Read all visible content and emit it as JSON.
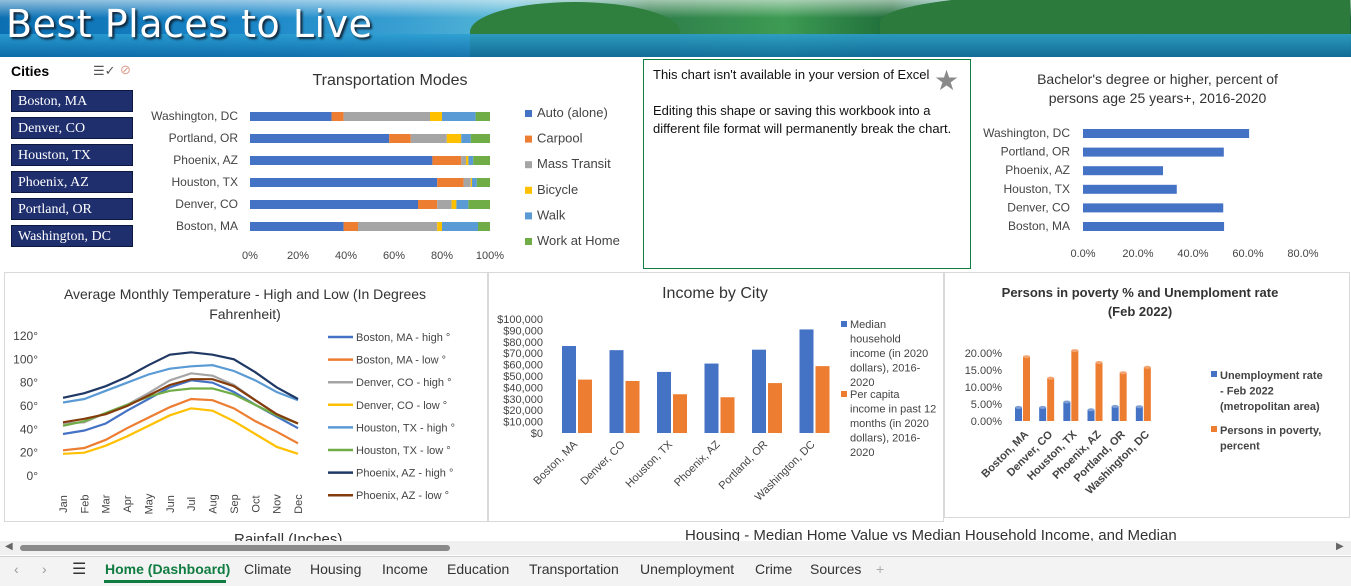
{
  "banner_title": "Best Places to Live",
  "slicer": {
    "title": "Cities",
    "items": [
      "Boston, MA",
      "Denver, CO",
      "Houston, TX",
      "Phoenix, AZ",
      "Portland, OR",
      "Washington, DC"
    ]
  },
  "unavailable_box": {
    "line1": "This chart isn't available in your version of Excel",
    "line2": "Editing this shape or saving this workbook into a different file format will permanently break the chart."
  },
  "chart_data": [
    {
      "type": "bar",
      "title": "Transportation Modes",
      "stacked": "100%",
      "categories": [
        "Washington, DC",
        "Portland, OR",
        "Phoenix, AZ",
        "Houston, TX",
        "Denver, CO",
        "Boston, MA"
      ],
      "x_ticks": [
        "0%",
        "20%",
        "40%",
        "60%",
        "80%",
        "100%"
      ],
      "series": [
        {
          "name": "Auto (alone)",
          "color": "#4472c4",
          "values": [
            34,
            58,
            76,
            78,
            70,
            39
          ]
        },
        {
          "name": "Carpool",
          "color": "#ed7d31",
          "values": [
            5,
            9,
            12,
            11,
            8,
            6
          ]
        },
        {
          "name": "Mass Transit",
          "color": "#a5a5a5",
          "values": [
            36,
            15,
            2,
            3,
            6,
            33
          ]
        },
        {
          "name": "Bicycle",
          "color": "#ffc000",
          "values": [
            5,
            6,
            1,
            0.5,
            2,
            2
          ]
        },
        {
          "name": "Walk",
          "color": "#5b9bd5",
          "values": [
            14,
            4,
            2,
            2,
            5,
            15
          ]
        },
        {
          "name": "Work at Home",
          "color": "#70ad47",
          "values": [
            6,
            8,
            7,
            5.5,
            9,
            5
          ]
        }
      ]
    },
    {
      "type": "bar",
      "title": "Bachelor's degree or higher, percent of persons age 25 years+, 2016-2020",
      "categories": [
        "Washington, DC",
        "Portland, OR",
        "Phoenix, AZ",
        "Houston, TX",
        "Denver, CO",
        "Boston, MA"
      ],
      "values": [
        60.4,
        51.2,
        29.1,
        34.1,
        51.0,
        51.3
      ],
      "x_ticks": [
        "0.0%",
        "20.0%",
        "40.0%",
        "60.0%",
        "80.0%"
      ],
      "xlim": [
        0,
        80
      ],
      "color": "#4472c4"
    },
    {
      "type": "line",
      "title": "Average Monthly Temperature - High and Low (In Degrees Fahrenheit)",
      "categories": [
        "Jan",
        "Feb",
        "Mar",
        "Apr",
        "May",
        "Jun",
        "Jul",
        "Aug",
        "Sep",
        "Oct",
        "Nov",
        "Dec"
      ],
      "y_ticks": [
        "0°",
        "20°",
        "40°",
        "60°",
        "80°",
        "100°",
        "120°"
      ],
      "ylim": [
        0,
        120
      ],
      "series": [
        {
          "name": "Boston, MA - high °",
          "color": "#4472c4",
          "values": [
            36,
            39,
            45,
            56,
            66,
            76,
            82,
            80,
            72,
            61,
            51,
            41
          ]
        },
        {
          "name": "Boston, MA - low °",
          "color": "#ed7d31",
          "values": [
            22,
            24,
            31,
            41,
            50,
            59,
            66,
            65,
            58,
            47,
            38,
            28
          ]
        },
        {
          "name": "Denver, CO - high °",
          "color": "#a5a5a5",
          "values": [
            45,
            46,
            54,
            61,
            71,
            82,
            88,
            86,
            78,
            65,
            53,
            45
          ]
        },
        {
          "name": "Denver, CO - low °",
          "color": "#ffc000",
          "values": [
            19,
            20,
            26,
            34,
            43,
            52,
            58,
            56,
            47,
            36,
            25,
            19
          ]
        },
        {
          "name": "Houston, TX - high °",
          "color": "#5b9bd5",
          "values": [
            63,
            66,
            73,
            80,
            87,
            92,
            94,
            95,
            90,
            82,
            72,
            65
          ]
        },
        {
          "name": "Houston, TX - low °",
          "color": "#70ad47",
          "values": [
            43,
            47,
            54,
            61,
            68,
            73,
            75,
            75,
            70,
            61,
            52,
            45
          ]
        },
        {
          "name": "Phoenix, AZ - high °",
          "color": "#1f3864",
          "values": [
            67,
            71,
            77,
            85,
            95,
            104,
            106,
            104,
            100,
            89,
            76,
            66
          ]
        },
        {
          "name": "Phoenix, AZ - low °",
          "color": "#843c0c",
          "values": [
            46,
            49,
            53,
            60,
            69,
            78,
            83,
            83,
            77,
            65,
            53,
            45
          ]
        }
      ]
    },
    {
      "type": "bar",
      "title": "Income by City",
      "categories": [
        "Boston, MA",
        "Denver, CO",
        "Houston, TX",
        "Phoenix, AZ",
        "Portland, OR",
        "Washington, DC"
      ],
      "y_ticks": [
        "$0",
        "$10,000",
        "$20,000",
        "$30,000",
        "$40,000",
        "$50,000",
        "$60,000",
        "$70,000",
        "$80,000",
        "$90,000",
        "$100,000"
      ],
      "ylim": [
        0,
        100000
      ],
      "series": [
        {
          "name": "Median household income (in 2020 dollars), 2016-2020",
          "color": "#4472c4",
          "values": [
            76298,
            72661,
            53600,
            60914,
            73097,
            90842
          ]
        },
        {
          "name": "Per capita income in past 12 months (in 2020 dollars), 2016-2020",
          "color": "#ed7d31",
          "values": [
            46845,
            45636,
            33999,
            31368,
            43793,
            58659
          ]
        }
      ]
    },
    {
      "type": "bar",
      "title": "Persons in poverty % and Unemploment rate (Feb 2022)",
      "categories": [
        "Boston, MA",
        "Denver, CO",
        "Houston, TX",
        "Phoenix, AZ",
        "Portland, OR",
        "Washington, DC"
      ],
      "y_ticks": [
        "0.00%",
        "5.00%",
        "10.00%",
        "15.00%",
        "20.00%"
      ],
      "ylim": [
        0,
        20
      ],
      "series": [
        {
          "name": "Unemployment rate - Feb 2022 (metropolitan area)",
          "color": "#4472c4",
          "values": [
            4.0,
            4.0,
            5.6,
            3.3,
            4.3,
            4.2
          ]
        },
        {
          "name": "Persons in poverty, percent",
          "color": "#ed7d31",
          "values": [
            18.9,
            12.6,
            20.7,
            17.2,
            14.2,
            15.8
          ]
        }
      ]
    }
  ],
  "partial_titles": {
    "rainfall": "Rainfall (Inches)",
    "housing": "Housing - Median Home Value vs Median Household Income, and Median"
  },
  "sheet_tabs": [
    "Home (Dashboard)",
    "Climate",
    "Housing",
    "Income",
    "Education",
    "Transportation",
    "Unemployment",
    "Crime",
    "Sources"
  ],
  "add_sheet": "+"
}
